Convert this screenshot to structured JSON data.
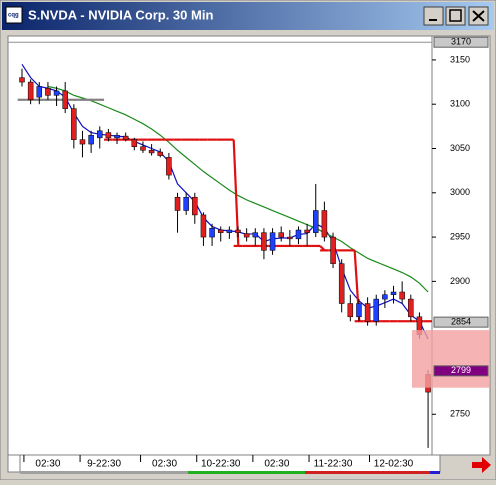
{
  "window": {
    "title": "S.NVDA - NVIDIA Corp. 30 Min"
  },
  "chart_data": {
    "type": "candlestick",
    "ylim": [
      2704,
      3177
    ],
    "yticks": [
      3150,
      3100,
      3050,
      3000,
      2950,
      2900,
      2750
    ],
    "price_markers": [
      {
        "value": 3170,
        "label": "3170",
        "color": "#c8c8c8"
      },
      {
        "value": 2854,
        "label": "2854",
        "color": "#c8c8c8"
      },
      {
        "value": 2799,
        "label": "2799",
        "color": "#800080"
      }
    ],
    "zone": [
      2780,
      2845
    ],
    "xticks": [
      {
        "value": 3,
        "label": "02:30"
      },
      {
        "value": 9.5,
        "label": "9-22:30"
      },
      {
        "value": 16.5,
        "label": "02:30"
      },
      {
        "value": 23,
        "label": "10-22:30"
      },
      {
        "value": 29.5,
        "label": "02:30"
      },
      {
        "value": 36,
        "label": "11-22:30"
      },
      {
        "value": 43,
        "label": "12-02:30"
      }
    ],
    "up_color": "#2040ff",
    "down_color": "#e02020",
    "ohlc": [
      [
        3130,
        3140,
        3120,
        3125
      ],
      [
        3125,
        3128,
        3100,
        3105
      ],
      [
        3108,
        3125,
        3100,
        3120
      ],
      [
        3118,
        3125,
        3105,
        3110
      ],
      [
        3110,
        3120,
        3098,
        3115
      ],
      [
        3115,
        3125,
        3090,
        3095
      ],
      [
        3095,
        3100,
        3050,
        3060
      ],
      [
        3060,
        3070,
        3040,
        3055
      ],
      [
        3055,
        3070,
        3045,
        3065
      ],
      [
        3062,
        3075,
        3050,
        3070
      ],
      [
        3068,
        3072,
        3058,
        3062
      ],
      [
        3062,
        3068,
        3055,
        3065
      ],
      [
        3064,
        3068,
        3058,
        3060
      ],
      [
        3060,
        3062,
        3048,
        3052
      ],
      [
        3052,
        3058,
        3045,
        3048
      ],
      [
        3048,
        3055,
        3042,
        3045
      ],
      [
        3046,
        3050,
        3040,
        3042
      ],
      [
        3040,
        3045,
        3015,
        3020
      ],
      [
        2995,
        3000,
        2955,
        2980
      ],
      [
        2980,
        3000,
        2975,
        2995
      ],
      [
        2995,
        3000,
        2965,
        2975
      ],
      [
        2975,
        2978,
        2940,
        2950
      ],
      [
        2950,
        2965,
        2940,
        2960
      ],
      [
        2958,
        2962,
        2945,
        2955
      ],
      [
        2955,
        2962,
        2948,
        2958
      ],
      [
        2958,
        2962,
        2950,
        2955
      ],
      [
        2954,
        2960,
        2945,
        2950
      ],
      [
        2950,
        2960,
        2940,
        2955
      ],
      [
        2955,
        2960,
        2925,
        2935
      ],
      [
        2935,
        2960,
        2930,
        2955
      ],
      [
        2955,
        2962,
        2945,
        2950
      ],
      [
        2950,
        2958,
        2940,
        2948
      ],
      [
        2948,
        2962,
        2942,
        2958
      ],
      [
        2958,
        2965,
        2940,
        2955
      ],
      [
        2955,
        3010,
        2950,
        2980
      ],
      [
        2980,
        2990,
        2945,
        2950
      ],
      [
        2950,
        2955,
        2915,
        2920
      ],
      [
        2920,
        2925,
        2865,
        2875
      ],
      [
        2875,
        2885,
        2855,
        2860
      ],
      [
        2860,
        2880,
        2855,
        2875
      ],
      [
        2875,
        2882,
        2850,
        2855
      ],
      [
        2855,
        2885,
        2850,
        2880
      ],
      [
        2880,
        2890,
        2870,
        2885
      ],
      [
        2885,
        2895,
        2875,
        2888
      ],
      [
        2888,
        2900,
        2875,
        2880
      ],
      [
        2880,
        2885,
        2855,
        2860
      ],
      [
        2860,
        2865,
        2835,
        2840
      ],
      [
        2795,
        2800,
        2712,
        2775
      ]
    ],
    "lines": [
      {
        "color": "#1010c0",
        "style": "line",
        "values": [
          3145,
          3130,
          3120,
          3118,
          3115,
          3108,
          3090,
          3075,
          3068,
          3066,
          3065,
          3064,
          3063,
          3058,
          3054,
          3050,
          3046,
          3035,
          3010,
          3000,
          2990,
          2972,
          2962,
          2958,
          2957,
          2956,
          2953,
          2954,
          2945,
          2948,
          2949,
          2949,
          2953,
          2954,
          2965,
          2960,
          2945,
          2915,
          2890,
          2878,
          2870,
          2872,
          2876,
          2880,
          2875,
          2862,
          2855,
          2835
        ]
      },
      {
        "color": "#1a8a1a",
        "style": "line",
        "values": [
          null,
          null,
          null,
          3120,
          3118,
          3115,
          3110,
          3107,
          3104,
          3100,
          3096,
          3092,
          3088,
          3083,
          3078,
          3072,
          3065,
          3057,
          3048,
          3040,
          3032,
          3024,
          3017,
          3010,
          3003,
          2997,
          2992,
          2988,
          2984,
          2980,
          2976,
          2972,
          2968,
          2964,
          2960,
          2955,
          2950,
          2945,
          2938,
          2932,
          2926,
          2922,
          2918,
          2914,
          2910,
          2905,
          2898,
          2888
        ]
      },
      {
        "color": "#808080",
        "style": "step",
        "values": [
          3105,
          3105,
          3105,
          3105,
          3105,
          3105,
          3105,
          3105,
          3105,
          3105,
          null,
          null,
          null,
          null,
          null,
          null,
          null,
          null,
          null,
          null,
          null,
          null,
          null,
          null,
          null,
          null,
          null,
          null,
          null,
          null,
          null,
          null,
          null,
          null,
          null,
          null,
          null,
          null,
          null,
          null,
          null,
          null,
          null,
          null,
          null,
          null,
          null,
          null
        ]
      },
      {
        "color": "#e01010",
        "style": "step",
        "values": [
          null,
          null,
          null,
          null,
          null,
          null,
          null,
          null,
          null,
          null,
          3060,
          3060,
          3060,
          3060,
          3060,
          3060,
          3060,
          3060,
          3060,
          3060,
          3060,
          3060,
          3060,
          3060,
          3060,
          2940,
          2940,
          2940,
          2940,
          2940,
          2940,
          2940,
          2940,
          2940,
          2940,
          2935,
          2935,
          2935,
          2935,
          2855,
          2855,
          2855,
          2855,
          2855,
          2855,
          2855,
          2855,
          2855
        ]
      }
    ]
  }
}
